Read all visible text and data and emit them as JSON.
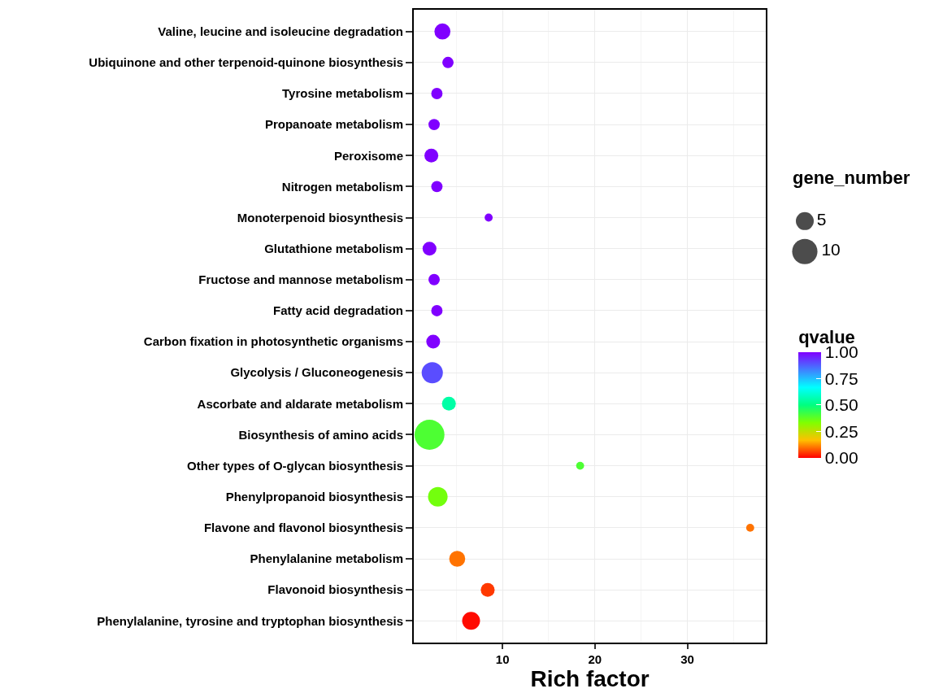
{
  "chart_data": {
    "type": "bubble",
    "orientation": "horizontal",
    "categories": [
      "Valine, leucine and isoleucine degradation",
      "Ubiquinone and other terpenoid-quinone biosynthesis",
      "Tyrosine metabolism",
      "Propanoate metabolism",
      "Peroxisome",
      "Nitrogen metabolism",
      "Monoterpenoid biosynthesis",
      "Glutathione metabolism",
      "Fructose and mannose metabolism",
      "Fatty acid degradation",
      "Carbon fixation in photosynthetic organisms",
      "Glycolysis / Gluconeogenesis",
      "Ascorbate and aldarate metabolism",
      "Biosynthesis of amino acids",
      "Other types of O-glycan biosynthesis",
      "Phenylpropanoid biosynthesis",
      "Flavone and flavonol biosynthesis",
      "Phenylalanine metabolism",
      "Flavonoid biosynthesis",
      "Phenylalanine, tyrosine and tryptophan biosynthesis"
    ],
    "values": [
      3.5,
      4.1,
      2.9,
      2.6,
      2.3,
      2.9,
      8.5,
      2.1,
      2.6,
      2.9,
      2.5,
      2.4,
      4.2,
      2.1,
      18.4,
      3.0,
      36.8,
      5.1,
      8.4,
      6.6
    ],
    "sizes": [
      4,
      2,
      2,
      2,
      3,
      2,
      1,
      3,
      2,
      2,
      3,
      7,
      3,
      14,
      1,
      6,
      1,
      4,
      3,
      5
    ],
    "cvalues": [
      1.0,
      1.0,
      1.0,
      1.0,
      1.0,
      1.0,
      1.0,
      1.0,
      1.0,
      1.0,
      1.0,
      0.9,
      0.55,
      0.4,
      0.4,
      0.35,
      0.1,
      0.1,
      0.05,
      0.01
    ],
    "size_legend": [
      5,
      10
    ],
    "legend_title": "gene_number",
    "clabel": "qvalue",
    "clim": [
      0,
      1
    ],
    "cticks": [
      {
        "value": 0,
        "label": "0.00"
      },
      {
        "value": 0.25,
        "label": "0.25"
      },
      {
        "value": 0.5,
        "label": "0.50"
      },
      {
        "value": 0.75,
        "label": "0.75"
      },
      {
        "value": 1,
        "label": "1.00"
      }
    ],
    "xlabel": "Rich factor",
    "xlim": [
      0.4,
      38.5
    ],
    "xticks": [
      10,
      20,
      30
    ],
    "grid": true
  }
}
